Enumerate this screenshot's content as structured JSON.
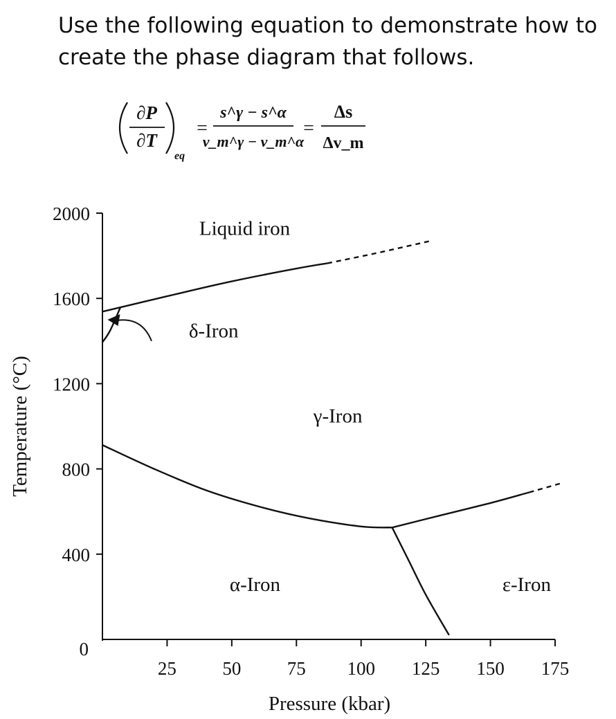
{
  "prompt": {
    "line1": "Use the following equation to demonstrate how to",
    "line2": "create the phase diagram that follows."
  },
  "equation": {
    "lhs_num": "∂P",
    "lhs_den": "∂T",
    "lhs_sub": "eq",
    "mid_num": "s^γ − s^α",
    "mid_den": "v_m^γ − v_m^α",
    "rhs_num": "Δs",
    "rhs_den": "Δv_m",
    "equals": "="
  },
  "chart_data": {
    "type": "line",
    "xlabel": "Pressure (kbar)",
    "ylabel": "Temperature (°C)",
    "xlim": [
      0,
      175
    ],
    "ylim": [
      0,
      2000
    ],
    "x_ticks": [
      25,
      50,
      75,
      100,
      125,
      150,
      175
    ],
    "x_tick_labels": [
      "25",
      "50",
      "75",
      "100",
      "125",
      "150",
      "175"
    ],
    "y_ticks": [
      0,
      400,
      800,
      1200,
      1600,
      2000
    ],
    "y_tick_labels": [
      "0",
      "400",
      "800",
      "1200",
      "1600",
      "2000"
    ],
    "grid": false,
    "regions": [
      {
        "label": "Liquid iron",
        "x": 55,
        "y": 1930
      },
      {
        "label": "δ-Iron",
        "x": 43,
        "y": 1450
      },
      {
        "label": "γ-Iron",
        "x": 91,
        "y": 1050
      },
      {
        "label": "α-Iron",
        "x": 59,
        "y": 260
      },
      {
        "label": "ε-Iron",
        "x": 164,
        "y": 260
      }
    ],
    "boundaries": [
      {
        "name": "melting-curve",
        "dashed": false,
        "points": [
          [
            0,
            1538
          ],
          [
            25,
            1610
          ],
          [
            50,
            1680
          ],
          [
            75,
            1740
          ],
          [
            87,
            1765
          ]
        ]
      },
      {
        "name": "melting-curve-extrapolated",
        "dashed": true,
        "points": [
          [
            87,
            1765
          ],
          [
            105,
            1810
          ],
          [
            127,
            1870
          ]
        ]
      },
      {
        "name": "delta-gamma-boundary",
        "dashed": false,
        "points": [
          [
            0,
            1394
          ],
          [
            3,
            1450
          ],
          [
            7,
            1560
          ]
        ]
      },
      {
        "name": "alpha-gamma-boundary",
        "dashed": false,
        "points": [
          [
            0,
            912
          ],
          [
            20,
            800
          ],
          [
            40,
            700
          ],
          [
            60,
            625
          ],
          [
            80,
            568
          ],
          [
            100,
            530
          ],
          [
            112,
            525
          ]
        ]
      },
      {
        "name": "gamma-epsilon-boundary",
        "dashed": false,
        "points": [
          [
            112,
            525
          ],
          [
            130,
            580
          ],
          [
            150,
            640
          ],
          [
            165,
            690
          ]
        ]
      },
      {
        "name": "gamma-epsilon-boundary-extrapolated",
        "dashed": true,
        "points": [
          [
            165,
            690
          ],
          [
            178,
            735
          ]
        ]
      },
      {
        "name": "alpha-epsilon-boundary",
        "dashed": false,
        "points": [
          [
            112,
            525
          ],
          [
            118,
            380
          ],
          [
            125,
            210
          ],
          [
            134,
            20
          ]
        ]
      }
    ],
    "annotation_arrow": {
      "from": [
        19,
        1400
      ],
      "to": [
        2,
        1500
      ]
    }
  }
}
